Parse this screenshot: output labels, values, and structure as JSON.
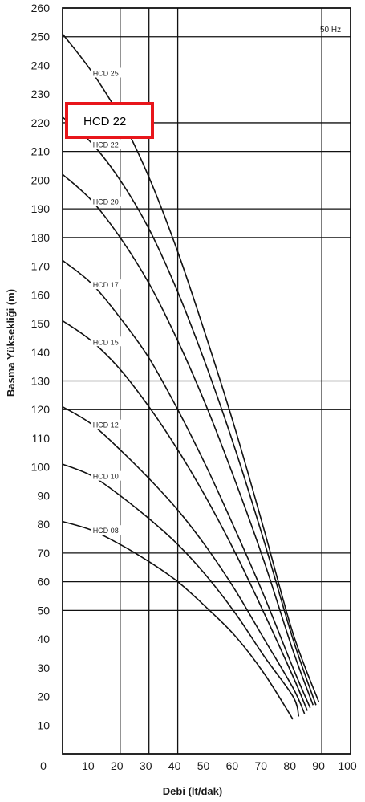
{
  "chart_data": {
    "type": "line",
    "xlabel": "Debi (lt/dak)",
    "ylabel": "Basma Yüksekliği (m)",
    "xlim": [
      0,
      100
    ],
    "ylim": [
      0,
      260
    ],
    "x_ticks": [
      "0",
      "10",
      "20",
      "30",
      "40",
      "50",
      "60",
      "70",
      "80",
      "90",
      "100"
    ],
    "y_ticks": [
      "10",
      "20",
      "30",
      "40",
      "50",
      "60",
      "70",
      "80",
      "90",
      "100",
      "110",
      "120",
      "130",
      "140",
      "150",
      "160",
      "170",
      "180",
      "190",
      "200",
      "210",
      "220",
      "230",
      "240",
      "250",
      "260"
    ],
    "grid_x": [
      20,
      30,
      40,
      90
    ],
    "grid_y": [
      50,
      60,
      70,
      120,
      130,
      180,
      190,
      210,
      220,
      250
    ],
    "frequency_label": "50 Hz",
    "series": [
      {
        "name": "HCD 08",
        "points": [
          [
            0,
            81
          ],
          [
            10,
            78
          ],
          [
            20,
            73
          ],
          [
            30,
            67
          ],
          [
            40,
            60
          ],
          [
            50,
            51
          ],
          [
            60,
            41
          ],
          [
            70,
            28
          ],
          [
            80,
            12
          ]
        ]
      },
      {
        "name": "HCD 10",
        "points": [
          [
            0,
            101
          ],
          [
            10,
            97
          ],
          [
            20,
            90
          ],
          [
            30,
            82
          ],
          [
            40,
            73
          ],
          [
            50,
            62
          ],
          [
            60,
            49
          ],
          [
            70,
            34
          ],
          [
            80,
            20
          ],
          [
            82,
            13
          ]
        ]
      },
      {
        "name": "HCD 12",
        "points": [
          [
            0,
            121
          ],
          [
            10,
            115
          ],
          [
            20,
            106
          ],
          [
            30,
            96
          ],
          [
            40,
            85
          ],
          [
            50,
            72
          ],
          [
            60,
            57
          ],
          [
            70,
            40
          ],
          [
            80,
            23
          ],
          [
            84,
            14
          ]
        ]
      },
      {
        "name": "HCD 15",
        "points": [
          [
            0,
            151
          ],
          [
            10,
            144
          ],
          [
            20,
            134
          ],
          [
            30,
            121
          ],
          [
            40,
            106
          ],
          [
            50,
            89
          ],
          [
            60,
            70
          ],
          [
            70,
            49
          ],
          [
            80,
            27
          ],
          [
            85,
            15
          ]
        ]
      },
      {
        "name": "HCD 17",
        "points": [
          [
            0,
            172
          ],
          [
            10,
            164
          ],
          [
            20,
            152
          ],
          [
            30,
            138
          ],
          [
            40,
            120
          ],
          [
            50,
            100
          ],
          [
            60,
            78
          ],
          [
            70,
            55
          ],
          [
            80,
            30
          ],
          [
            86,
            16
          ]
        ]
      },
      {
        "name": "HCD 20",
        "points": [
          [
            0,
            202
          ],
          [
            10,
            193
          ],
          [
            20,
            180
          ],
          [
            30,
            164
          ],
          [
            40,
            144
          ],
          [
            50,
            121
          ],
          [
            60,
            95
          ],
          [
            70,
            67
          ],
          [
            80,
            36
          ],
          [
            87,
            17
          ]
        ]
      },
      {
        "name": "HCD 22",
        "points": [
          [
            0,
            222
          ],
          [
            10,
            213
          ],
          [
            20,
            200
          ],
          [
            30,
            183
          ],
          [
            40,
            161
          ],
          [
            50,
            135
          ],
          [
            60,
            106
          ],
          [
            70,
            74
          ],
          [
            80,
            40
          ],
          [
            88,
            17
          ]
        ]
      },
      {
        "name": "HCD 25",
        "points": [
          [
            0,
            251
          ],
          [
            10,
            238
          ],
          [
            20,
            222
          ],
          [
            30,
            201
          ],
          [
            40,
            175
          ],
          [
            50,
            145
          ],
          [
            60,
            113
          ],
          [
            70,
            78
          ],
          [
            80,
            42
          ],
          [
            89,
            18
          ]
        ]
      }
    ]
  },
  "callout": {
    "text": "HCD 22",
    "border_color": "#e8161b"
  }
}
